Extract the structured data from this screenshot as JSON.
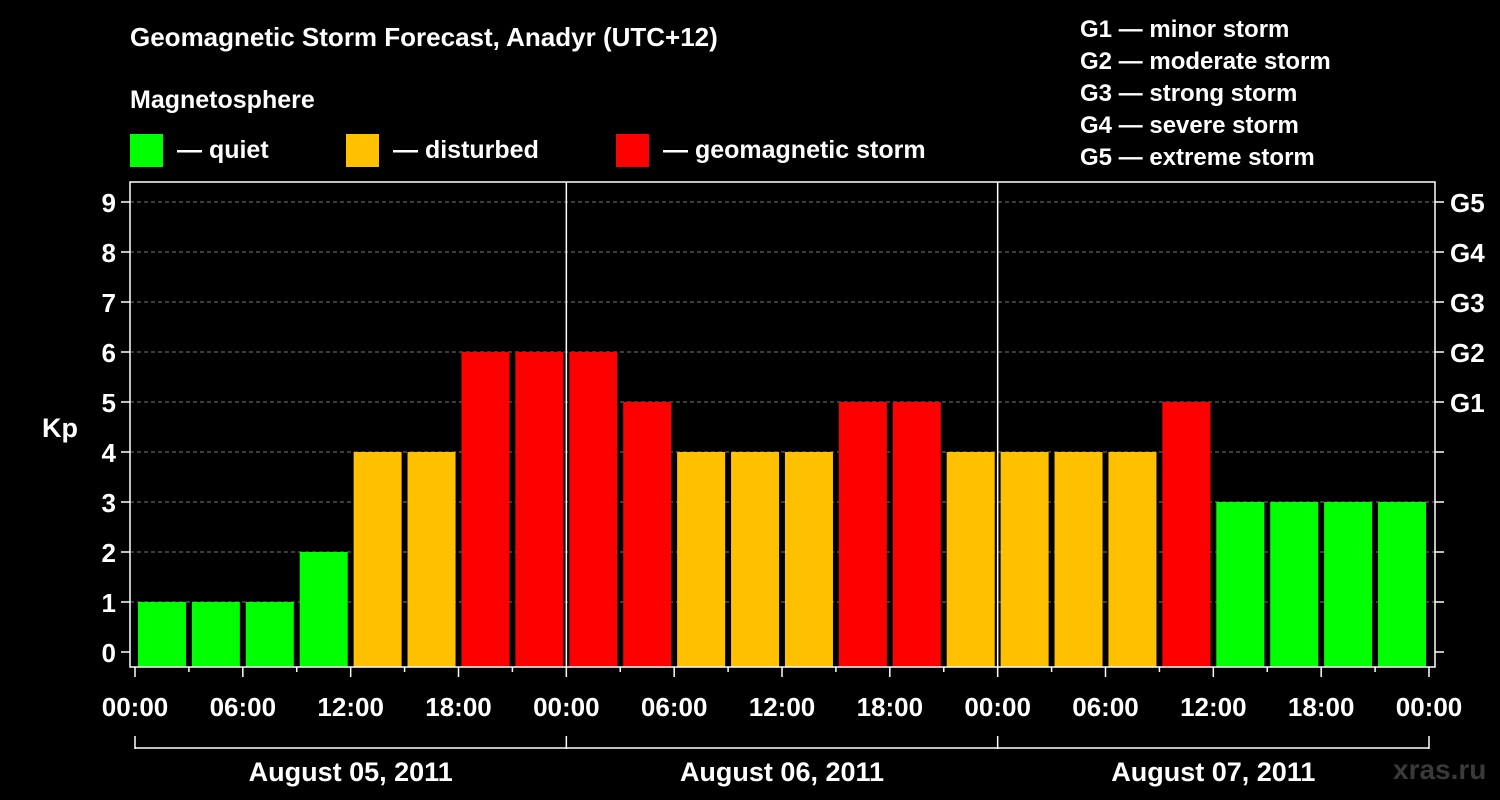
{
  "title": "Geomagnetic Storm Forecast, Anadyr (UTC+12)",
  "magnetosphere": {
    "label": "Magnetosphere",
    "legend": [
      {
        "label": "— quiet",
        "color": "#00ff00"
      },
      {
        "label": "— disturbed",
        "color": "#ffc000"
      },
      {
        "label": "— geomagnetic storm",
        "color": "#ff0000"
      }
    ]
  },
  "g_scale": [
    "G1 — minor storm",
    "G2 — moderate storm",
    "G3 — strong storm",
    "G4 — severe storm",
    "G5 — extreme storm"
  ],
  "watermark": "xras.ru",
  "chart_data": {
    "type": "bar",
    "ylabel": "Kp",
    "ylim": [
      0,
      9
    ],
    "yticks": [
      "0",
      "1",
      "2",
      "3",
      "4",
      "5",
      "6",
      "7",
      "8",
      "9"
    ],
    "right_labels": [
      {
        "kp": 5,
        "label": "G1"
      },
      {
        "kp": 6,
        "label": "G2"
      },
      {
        "kp": 7,
        "label": "G3"
      },
      {
        "kp": 8,
        "label": "G4"
      },
      {
        "kp": 9,
        "label": "G5"
      }
    ],
    "x_tick_labels": [
      "00:00",
      "06:00",
      "12:00",
      "18:00",
      "00:00",
      "06:00",
      "12:00",
      "18:00",
      "00:00",
      "06:00",
      "12:00",
      "18:00",
      "00:00"
    ],
    "days": [
      "August 05, 2011",
      "August 06, 2011",
      "August 07, 2011"
    ],
    "values": [
      1,
      1,
      1,
      2,
      4,
      4,
      6,
      6,
      6,
      5,
      4,
      4,
      4,
      5,
      5,
      4,
      4,
      4,
      4,
      5,
      3,
      3,
      3,
      3
    ],
    "thresholds": {
      "quiet_max": 3,
      "disturbed_max": 4
    },
    "colors": {
      "quiet": "#00ff00",
      "disturbed": "#ffc000",
      "storm": "#ff0000"
    }
  }
}
